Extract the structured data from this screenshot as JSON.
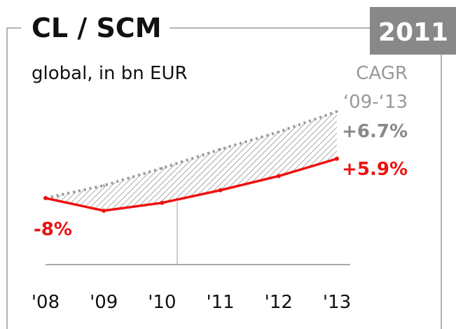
{
  "chart_data": {
    "type": "line",
    "title": "CL / SCM",
    "badge": "2011",
    "subtitle": "global, in bn EUR",
    "categories": [
      "'08",
      "'09",
      "'10",
      "'11",
      "'12",
      "'13"
    ],
    "series": [
      {
        "color": "#999999",
        "dash": "dotted",
        "values": [
          0,
          8,
          19,
          31,
          42,
          55
        ]
      },
      {
        "color": "#ee1111",
        "values": [
          0,
          -8,
          -3,
          5,
          14,
          25
        ]
      }
    ],
    "annotations": [
      {
        "text": "CAGR",
        "color": "#999999"
      },
      {
        "text": "‘09-‘13",
        "color": "#999999"
      },
      {
        "text": "+6.7%",
        "color": "#888888"
      },
      {
        "text": "+5.9%",
        "color": "#ee1111"
      },
      {
        "text": "-8%",
        "color": "#ee1111"
      }
    ]
  }
}
